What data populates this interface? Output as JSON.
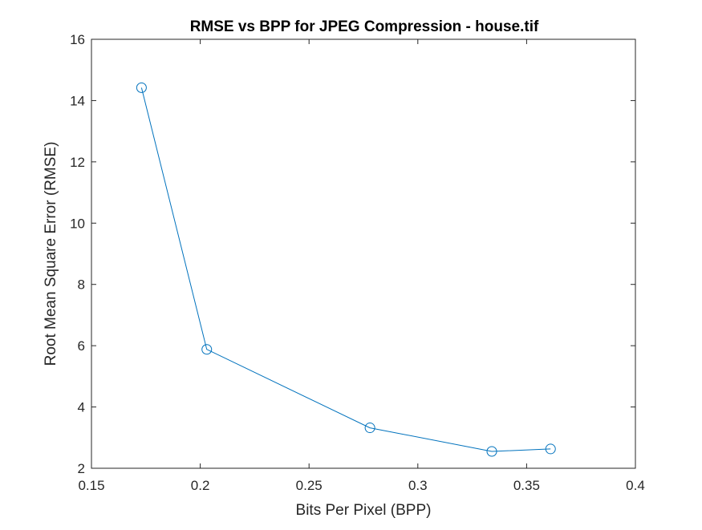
{
  "chart_data": {
    "type": "line",
    "title": "RMSE vs BPP for JPEG Compression - house.tif",
    "xlabel": "Bits Per Pixel (BPP)",
    "ylabel": "Root Mean Square Error (RMSE)",
    "xlim": [
      0.15,
      0.4
    ],
    "ylim": [
      2,
      16
    ],
    "xticks": [
      0.15,
      0.2,
      0.25,
      0.3,
      0.35,
      0.4
    ],
    "xtick_labels": [
      "0.15",
      "0.2",
      "0.25",
      "0.3",
      "0.35",
      "0.4"
    ],
    "yticks": [
      2,
      4,
      6,
      8,
      10,
      12,
      14,
      16
    ],
    "ytick_labels": [
      "2",
      "4",
      "6",
      "8",
      "10",
      "12",
      "14",
      "16"
    ],
    "grid": false,
    "legend": "none",
    "marker": "circle",
    "series": [
      {
        "color": "#0072BD",
        "x": [
          0.173,
          0.203,
          0.278,
          0.334,
          0.361
        ],
        "y": [
          14.42,
          5.88,
          3.32,
          2.55,
          2.63
        ]
      }
    ]
  }
}
